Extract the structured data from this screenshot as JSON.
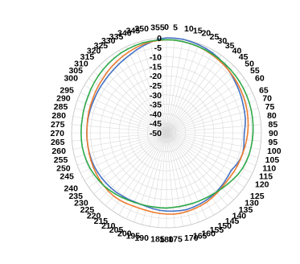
{
  "chart_data": {
    "type": "radar",
    "angle_ticks": [
      "0",
      "5",
      "10",
      "15",
      "20",
      "25",
      "30",
      "35",
      "40",
      "45",
      "50",
      "55",
      "60",
      "65",
      "70",
      "75",
      "80",
      "85",
      "90",
      "95",
      "100",
      "105",
      "110",
      "115",
      "120",
      "125",
      "130",
      "135",
      "140",
      "145",
      "150",
      "155",
      "160",
      "165",
      "170",
      "175",
      "180",
      "185",
      "190",
      "195",
      "200",
      "205",
      "210",
      "215",
      "220",
      "225",
      "230",
      "235",
      "240",
      "245",
      "250",
      "255",
      "260",
      "265",
      "270",
      "275",
      "280",
      "285",
      "290",
      "295",
      "300",
      "305",
      "310",
      "315",
      "320",
      "325",
      "330",
      "335",
      "340",
      "345",
      "350",
      "355"
    ],
    "radial_ticks": [
      "0",
      "-5",
      "-10",
      "-15",
      "-20",
      "-25",
      "-30",
      "-35",
      "-40",
      "-45",
      "-50"
    ],
    "rlim": [
      -50,
      0
    ],
    "series": [
      {
        "color": "#4472c4",
        "values": [
          0,
          0,
          0,
          -0.3,
          -0.6,
          -1,
          -1.4,
          -2,
          -2.8,
          -3.6,
          -4.4,
          -5.2,
          -5.8,
          -6.4,
          -7,
          -7.4,
          -7.8,
          -8.4,
          -9,
          -9,
          -8.6,
          -8.4,
          -8.8,
          -9.6,
          -10.6,
          -10.4,
          -10,
          -9.6,
          -9.2,
          -9,
          -8.8,
          -8.6,
          -8.4,
          -8.2,
          -8.4,
          -8.6,
          -8.8,
          -9,
          -9.4,
          -9.8,
          -10,
          -10,
          -9.6,
          -9.4,
          -9,
          -8.8,
          -8.6,
          -8.4,
          -8.2,
          -8,
          -8,
          -8,
          -8,
          -8,
          -8,
          -8,
          -8,
          -8,
          -8,
          -8,
          -7.8,
          -7.6,
          -7.4,
          -7,
          -6.6,
          -6,
          -5.4,
          -4.6,
          -3.6,
          -2.6,
          -1.6,
          -0.6
        ]
      },
      {
        "color": "#ed7d31",
        "values": [
          -1,
          -1,
          -1.2,
          -1.4,
          -1.6,
          -2,
          -2.4,
          -2.8,
          -3.2,
          -3.6,
          -4,
          -4.4,
          -4.8,
          -5.2,
          -5.6,
          -6,
          -6.4,
          -6.8,
          -7.2,
          -7.6,
          -8,
          -8.4,
          -8.6,
          -8.8,
          -9,
          -9.2,
          -9.2,
          -9,
          -8.6,
          -8.2,
          -7.8,
          -7.6,
          -7.4,
          -7.2,
          -7,
          -7,
          -7.2,
          -7.4,
          -7.6,
          -7.8,
          -7.8,
          -7.6,
          -7.2,
          -6.8,
          -6.6,
          -6.6,
          -6.8,
          -7,
          -7.2,
          -7.4,
          -7.6,
          -7.8,
          -8,
          -8,
          -8,
          -8,
          -7.8,
          -7.6,
          -7.4,
          -7.2,
          -6.8,
          -6.4,
          -6,
          -5.4,
          -4.8,
          -4.2,
          -3.6,
          -3,
          -2.4,
          -1.8,
          -1.4,
          -1.2
        ]
      },
      {
        "color": "#2eaa4a",
        "values": [
          -1,
          -1,
          -1.2,
          -1.4,
          -1.6,
          -1.8,
          -2,
          -2.2,
          -2.4,
          -2.6,
          -2.8,
          -3,
          -3.2,
          -3.4,
          -3.6,
          -3.8,
          -4,
          -4.2,
          -4.4,
          -4.6,
          -4.8,
          -5,
          -5.4,
          -5.8,
          -6.4,
          -7.2,
          -8,
          -8.6,
          -9.2,
          -9.6,
          -10,
          -10.2,
          -10.4,
          -10.6,
          -10.6,
          -10.6,
          -10.4,
          -10.4,
          -10.4,
          -10.2,
          -10,
          -9.6,
          -9.2,
          -8.6,
          -8,
          -7.4,
          -6.8,
          -6.4,
          -6,
          -5.6,
          -5.4,
          -5.2,
          -5,
          -5,
          -5,
          -5,
          -5,
          -4.8,
          -4.6,
          -4.4,
          -4,
          -3.6,
          -3.2,
          -2.8,
          -2.4,
          -2,
          -1.6,
          -1.4,
          -1.2,
          -1,
          -1,
          -1
        ]
      }
    ]
  }
}
